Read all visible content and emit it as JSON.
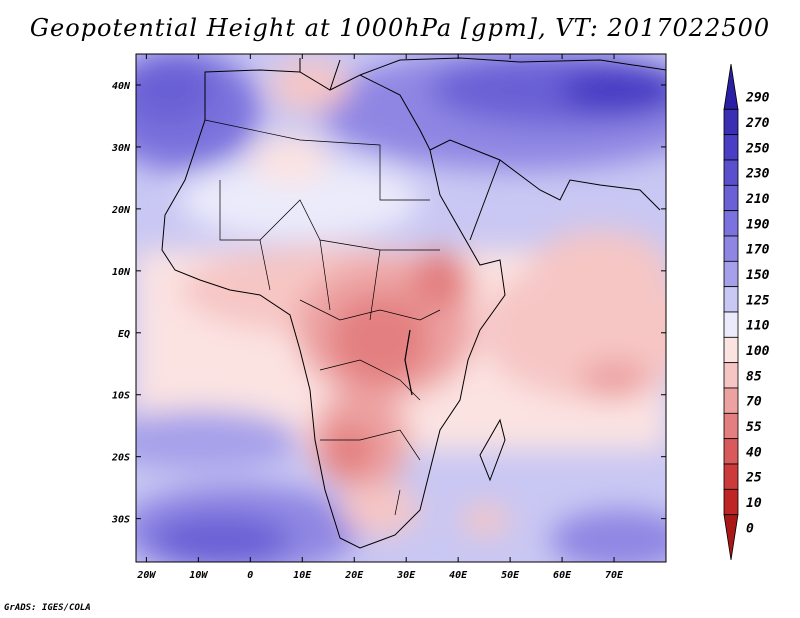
{
  "title": "Geopotential Height at 1000hPa [gpm], VT: 2017022500",
  "footer": "GrADS: IGES/COLA",
  "map": {
    "region": "Africa and Middle East",
    "lon_range": [
      -22,
      80
    ],
    "lat_range": [
      -37,
      45
    ],
    "lat_labels": [
      "40N",
      "30N",
      "20N",
      "10N",
      "EQ",
      "10S",
      "20S",
      "30S"
    ],
    "lat_values": [
      40,
      30,
      20,
      10,
      0,
      -10,
      -20,
      -30
    ],
    "lon_labels": [
      "20W",
      "10W",
      "0",
      "10E",
      "20E",
      "30E",
      "40E",
      "50E",
      "60E",
      "70E"
    ],
    "lon_values": [
      -20,
      -10,
      0,
      10,
      20,
      30,
      40,
      50,
      60,
      70
    ]
  },
  "colorbar": {
    "levels": [
      "290",
      "270",
      "250",
      "230",
      "210",
      "190",
      "170",
      "150",
      "125",
      "110",
      "100",
      "85",
      "70",
      "55",
      "40",
      "25",
      "10",
      "0"
    ],
    "colors": [
      "#2a1ea3",
      "#3a2eb3",
      "#4a3ec4",
      "#5a4fcd",
      "#6b60d6",
      "#7c72dd",
      "#8f86e3",
      "#a6a0ea",
      "#c9c7f3",
      "#ebebfb",
      "#fbe3e2",
      "#f6c6c5",
      "#eda2a2",
      "#e37f80",
      "#d85a5b",
      "#cd3a3b",
      "#bf2525",
      "#aa1717"
    ]
  }
}
